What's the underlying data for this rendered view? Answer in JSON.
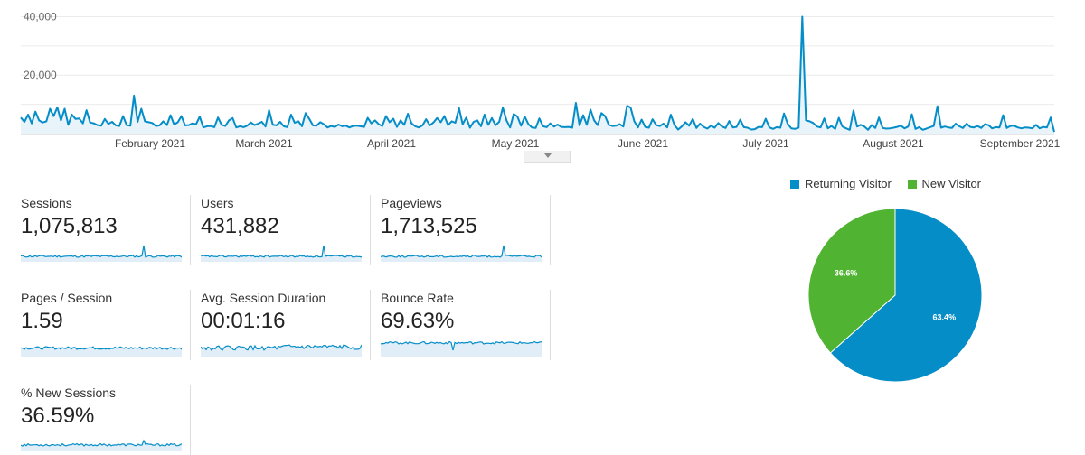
{
  "chart_data": [
    {
      "type": "area",
      "title": "",
      "xlabel": "",
      "ylabel": "",
      "y_ticks": [
        "40,000",
        "20,000"
      ],
      "ylim": [
        0,
        42000
      ],
      "x_tick_labels": [
        "February 2021",
        "March 2021",
        "April 2021",
        "May 2021",
        "June 2021",
        "July 2021",
        "August 2021",
        "September 2021"
      ],
      "color": "#058dc7",
      "grid": true,
      "series": [
        {
          "values": [
            5500,
            4000,
            6500,
            3500,
            7500,
            4500,
            3800,
            4200,
            8500,
            6000,
            9000,
            4500,
            8500,
            3000,
            6500,
            5000,
            5200,
            3500,
            8000,
            3800,
            3500,
            2900,
            2700,
            5000,
            3300,
            4000,
            2800,
            2600,
            6000,
            2900,
            2700,
            13000,
            4000,
            8500,
            4200,
            3900,
            3600,
            2600,
            2800,
            4200,
            2900,
            6300,
            3100,
            3900,
            6000,
            2800,
            2900,
            3500,
            3200,
            5800,
            2100,
            2500,
            2600,
            2200,
            5500,
            3000,
            2600,
            4500,
            5300,
            2100,
            2500,
            2200,
            2700,
            3800,
            2900,
            3400,
            4000,
            2400,
            8000,
            3000,
            2800,
            4000,
            2500,
            2200,
            6500,
            3700,
            4200,
            2500,
            7000,
            5000,
            2800,
            2700,
            3900,
            3200,
            2100,
            2600,
            2300,
            3100,
            2500,
            2700,
            2100,
            2600,
            2700,
            2500,
            2300,
            5400,
            3500,
            4500,
            3200,
            2600,
            6000,
            3900,
            5100,
            2300,
            4500,
            3000,
            6800,
            3500,
            2500,
            2100,
            2800,
            4900,
            2800,
            3800,
            5300,
            3900,
            6000,
            2900,
            4200,
            3700,
            8700,
            3200,
            5500,
            2000,
            4000,
            4500,
            2500,
            6500,
            3000,
            5300,
            2900,
            4000,
            8900,
            4500,
            2100,
            6700,
            5800,
            2700,
            5800,
            3200,
            2100,
            1900,
            5200,
            2500,
            2200,
            3500,
            2400,
            3100,
            2300,
            2200,
            2300,
            2000,
            10500,
            2800,
            6300,
            3000,
            8200,
            4500,
            2900,
            7000,
            6000,
            3000,
            2600,
            2700,
            3200,
            2400,
            9500,
            8900,
            4200,
            2100,
            4800,
            2300,
            2000,
            4900,
            2900,
            2600,
            3400,
            2100,
            6500,
            2900,
            1400,
            2400,
            3900,
            2700,
            5000,
            1900,
            3400,
            2300,
            1700,
            2700,
            2000,
            3600,
            2400,
            1900,
            4300,
            2100,
            2300,
            4800,
            2200,
            2000,
            1400,
            1500,
            2300,
            2200,
            5100,
            2100,
            1600,
            2200,
            2000,
            6900,
            3300,
            1800,
            1600,
            2000,
            40000,
            4500,
            4200,
            3600,
            2400,
            2100,
            5200,
            1800,
            2600,
            1600,
            5400,
            2400,
            1800,
            1300,
            7900,
            2400,
            3000,
            2400,
            1300,
            2900,
            1900,
            5500,
            1900,
            1700,
            1800,
            2000,
            2300,
            2700,
            1800,
            2400,
            6600,
            1600,
            2200,
            1300,
            1700,
            2200,
            2600,
            9400,
            2000,
            2400,
            2100,
            1900,
            3400,
            2500,
            1900,
            3400,
            2300,
            2100,
            2600,
            1900,
            3200,
            2900,
            1800,
            2200,
            2100,
            6300,
            1900,
            2600,
            2700,
            2100,
            1800,
            2100,
            2000,
            1800,
            3000,
            1800,
            2300,
            2100,
            5500,
            600
          ]
        }
      ]
    },
    {
      "type": "pie",
      "title": "",
      "legend_position": "top",
      "series": [
        {
          "name": "Returning Visitor",
          "value": 63.4,
          "label": "63.4%",
          "color": "#058dc7"
        },
        {
          "name": "New Visitor",
          "value": 36.6,
          "label": "36.6%",
          "color": "#50b432"
        }
      ]
    }
  ],
  "metrics": [
    {
      "label": "Sessions",
      "value": "1,075,813"
    },
    {
      "label": "Users",
      "value": "431,882"
    },
    {
      "label": "Pageviews",
      "value": "1,713,525"
    },
    {
      "label": "Pages / Session",
      "value": "1.59"
    },
    {
      "label": "Avg. Session Duration",
      "value": "00:01:16"
    },
    {
      "label": "Bounce Rate",
      "value": "69.63%"
    },
    {
      "label": "% New Sessions",
      "value": "36.59%"
    }
  ]
}
